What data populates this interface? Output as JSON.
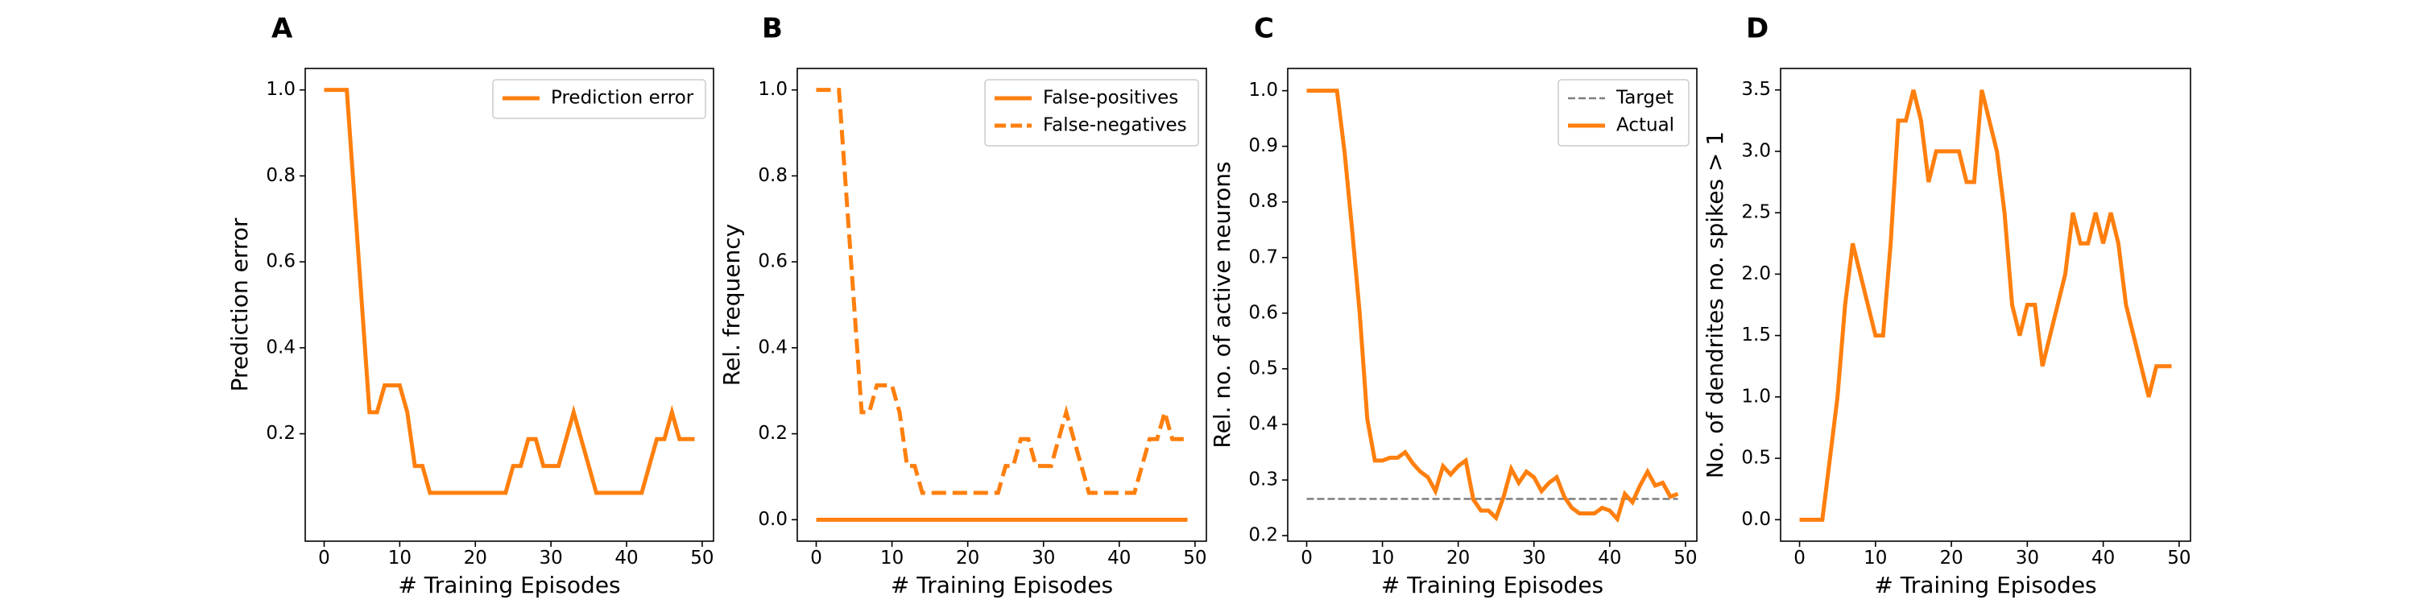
{
  "chart_data": [
    {
      "panel": "A",
      "type": "line",
      "xlabel": "# Training Episodes",
      "ylabel": "Prediction error",
      "xlim": [
        -2.5,
        51.5
      ],
      "ylim": [
        -0.05,
        1.05
      ],
      "xticks": [
        0,
        10,
        20,
        30,
        40,
        50
      ],
      "yticks": [
        0.2,
        0.4,
        0.6,
        0.8,
        1.0
      ],
      "ytick_labels": [
        "0.2",
        "0.4",
        "0.6",
        "0.8",
        "1.0"
      ],
      "legend_position": "top-right",
      "grid": false,
      "series": [
        {
          "name": "Prediction error",
          "color": "#ff7f0e",
          "style": "solid",
          "x": [
            0,
            1,
            2,
            3,
            4,
            5,
            6,
            7,
            8,
            9,
            10,
            11,
            12,
            13,
            14,
            15,
            16,
            17,
            18,
            19,
            20,
            21,
            22,
            23,
            24,
            25,
            26,
            27,
            28,
            29,
            30,
            31,
            32,
            33,
            34,
            35,
            36,
            37,
            38,
            39,
            40,
            41,
            42,
            43,
            44,
            45,
            46,
            47,
            48,
            49
          ],
          "y": [
            1.0,
            1.0,
            1.0,
            1.0,
            0.75,
            0.5,
            0.25,
            0.25,
            0.3125,
            0.3125,
            0.3125,
            0.25,
            0.125,
            0.125,
            0.0625,
            0.0625,
            0.0625,
            0.0625,
            0.0625,
            0.0625,
            0.0625,
            0.0625,
            0.0625,
            0.0625,
            0.0625,
            0.125,
            0.125,
            0.1875,
            0.1875,
            0.125,
            0.125,
            0.125,
            0.1875,
            0.25,
            0.1875,
            0.125,
            0.0625,
            0.0625,
            0.0625,
            0.0625,
            0.0625,
            0.0625,
            0.0625,
            0.125,
            0.1875,
            0.1875,
            0.25,
            0.1875,
            0.1875,
            0.1875
          ]
        }
      ]
    },
    {
      "panel": "B",
      "type": "line",
      "xlabel": "# Training Episodes",
      "ylabel": "Rel. frequency",
      "xlim": [
        -2.5,
        51.5
      ],
      "ylim": [
        -0.05,
        1.05
      ],
      "xticks": [
        0,
        10,
        20,
        30,
        40,
        50
      ],
      "yticks": [
        0.0,
        0.2,
        0.4,
        0.6,
        0.8,
        1.0
      ],
      "ytick_labels": [
        "0.0",
        "0.2",
        "0.4",
        "0.6",
        "0.8",
        "1.0"
      ],
      "legend_position": "top-right",
      "grid": false,
      "series": [
        {
          "name": "False-positives",
          "color": "#ff7f0e",
          "style": "solid",
          "x": [
            0,
            49
          ],
          "y": [
            0.0,
            0.0
          ]
        },
        {
          "name": "False-negatives",
          "color": "#ff7f0e",
          "style": "dashed",
          "x": [
            0,
            1,
            2,
            3,
            4,
            5,
            6,
            7,
            8,
            9,
            10,
            11,
            12,
            13,
            14,
            15,
            16,
            17,
            18,
            19,
            20,
            21,
            22,
            23,
            24,
            25,
            26,
            27,
            28,
            29,
            30,
            31,
            32,
            33,
            34,
            35,
            36,
            37,
            38,
            39,
            40,
            41,
            42,
            43,
            44,
            45,
            46,
            47,
            48,
            49
          ],
          "y": [
            1.0,
            1.0,
            1.0,
            1.0,
            0.75,
            0.5,
            0.25,
            0.25,
            0.3125,
            0.3125,
            0.3125,
            0.25,
            0.125,
            0.125,
            0.0625,
            0.0625,
            0.0625,
            0.0625,
            0.0625,
            0.0625,
            0.0625,
            0.0625,
            0.0625,
            0.0625,
            0.0625,
            0.125,
            0.125,
            0.1875,
            0.1875,
            0.125,
            0.125,
            0.125,
            0.1875,
            0.25,
            0.1875,
            0.125,
            0.0625,
            0.0625,
            0.0625,
            0.0625,
            0.0625,
            0.0625,
            0.0625,
            0.125,
            0.1875,
            0.1875,
            0.25,
            0.1875,
            0.1875,
            0.1875
          ]
        }
      ]
    },
    {
      "panel": "C",
      "type": "line",
      "xlabel": "# Training Episodes",
      "ylabel": "Rel. no. of active neurons",
      "xlim": [
        -2.5,
        51.5
      ],
      "ylim": [
        0.19,
        1.04
      ],
      "xticks": [
        0,
        10,
        20,
        30,
        40,
        50
      ],
      "yticks": [
        0.2,
        0.3,
        0.4,
        0.5,
        0.6,
        0.7,
        0.8,
        0.9,
        1.0
      ],
      "ytick_labels": [
        "0.2",
        "0.3",
        "0.4",
        "0.5",
        "0.6",
        "0.7",
        "0.8",
        "0.9",
        "1.0"
      ],
      "legend_position": "top-right",
      "grid": false,
      "series": [
        {
          "name": "Target",
          "color": "#7f7f7f",
          "style": "dashed",
          "x": [
            0,
            49
          ],
          "y": [
            0.266,
            0.266
          ]
        },
        {
          "name": "Actual",
          "color": "#ff7f0e",
          "style": "solid",
          "x": [
            0,
            1,
            2,
            3,
            4,
            5,
            6,
            7,
            8,
            9,
            10,
            11,
            12,
            13,
            14,
            15,
            16,
            17,
            18,
            19,
            20,
            21,
            22,
            23,
            24,
            25,
            26,
            27,
            28,
            29,
            30,
            31,
            32,
            33,
            34,
            35,
            36,
            37,
            38,
            39,
            40,
            41,
            42,
            43,
            44,
            45,
            46,
            47,
            48,
            49
          ],
          "y": [
            1.0,
            1.0,
            1.0,
            1.0,
            1.0,
            0.89,
            0.75,
            0.6,
            0.41,
            0.335,
            0.335,
            0.34,
            0.34,
            0.35,
            0.33,
            0.315,
            0.305,
            0.28,
            0.325,
            0.31,
            0.325,
            0.335,
            0.265,
            0.245,
            0.245,
            0.232,
            0.27,
            0.32,
            0.295,
            0.315,
            0.305,
            0.28,
            0.295,
            0.305,
            0.27,
            0.25,
            0.24,
            0.24,
            0.24,
            0.25,
            0.245,
            0.23,
            0.275,
            0.26,
            0.29,
            0.315,
            0.29,
            0.295,
            0.27,
            0.275
          ]
        }
      ]
    },
    {
      "panel": "D",
      "type": "line",
      "xlabel": "# Training Episodes",
      "ylabel": "No. of dendrites no. spikes > 1",
      "xlim": [
        -2.5,
        51.5
      ],
      "ylim": [
        -0.175,
        3.675
      ],
      "xticks": [
        0,
        10,
        20,
        30,
        40,
        50
      ],
      "yticks": [
        0.0,
        0.5,
        1.0,
        1.5,
        2.0,
        2.5,
        3.0,
        3.5
      ],
      "ytick_labels": [
        "0.0",
        "0.5",
        "1.0",
        "1.5",
        "2.0",
        "2.5",
        "3.0",
        "3.5"
      ],
      "legend_position": "none",
      "grid": false,
      "series": [
        {
          "color": "#ff7f0e",
          "style": "solid",
          "x": [
            0,
            1,
            2,
            3,
            4,
            5,
            6,
            7,
            8,
            9,
            10,
            11,
            12,
            13,
            14,
            15,
            16,
            17,
            18,
            19,
            20,
            21,
            22,
            23,
            24,
            25,
            26,
            27,
            28,
            29,
            30,
            31,
            32,
            33,
            34,
            35,
            36,
            37,
            38,
            39,
            40,
            41,
            42,
            43,
            44,
            45,
            46,
            47,
            48,
            49
          ],
          "y": [
            0.0,
            0.0,
            0.0,
            0.0,
            0.5,
            1.0,
            1.75,
            2.25,
            2.0,
            1.75,
            1.5,
            1.5,
            2.25,
            3.25,
            3.25,
            3.5,
            3.25,
            2.75,
            3.0,
            3.0,
            3.0,
            3.0,
            2.75,
            2.75,
            3.5,
            3.25,
            3.0,
            2.5,
            1.75,
            1.5,
            1.75,
            1.75,
            1.25,
            1.5,
            1.75,
            2.0,
            2.5,
            2.25,
            2.25,
            2.5,
            2.25,
            2.5,
            2.25,
            1.75,
            1.5,
            1.25,
            1.0,
            1.25,
            1.25,
            1.25
          ]
        }
      ]
    }
  ]
}
